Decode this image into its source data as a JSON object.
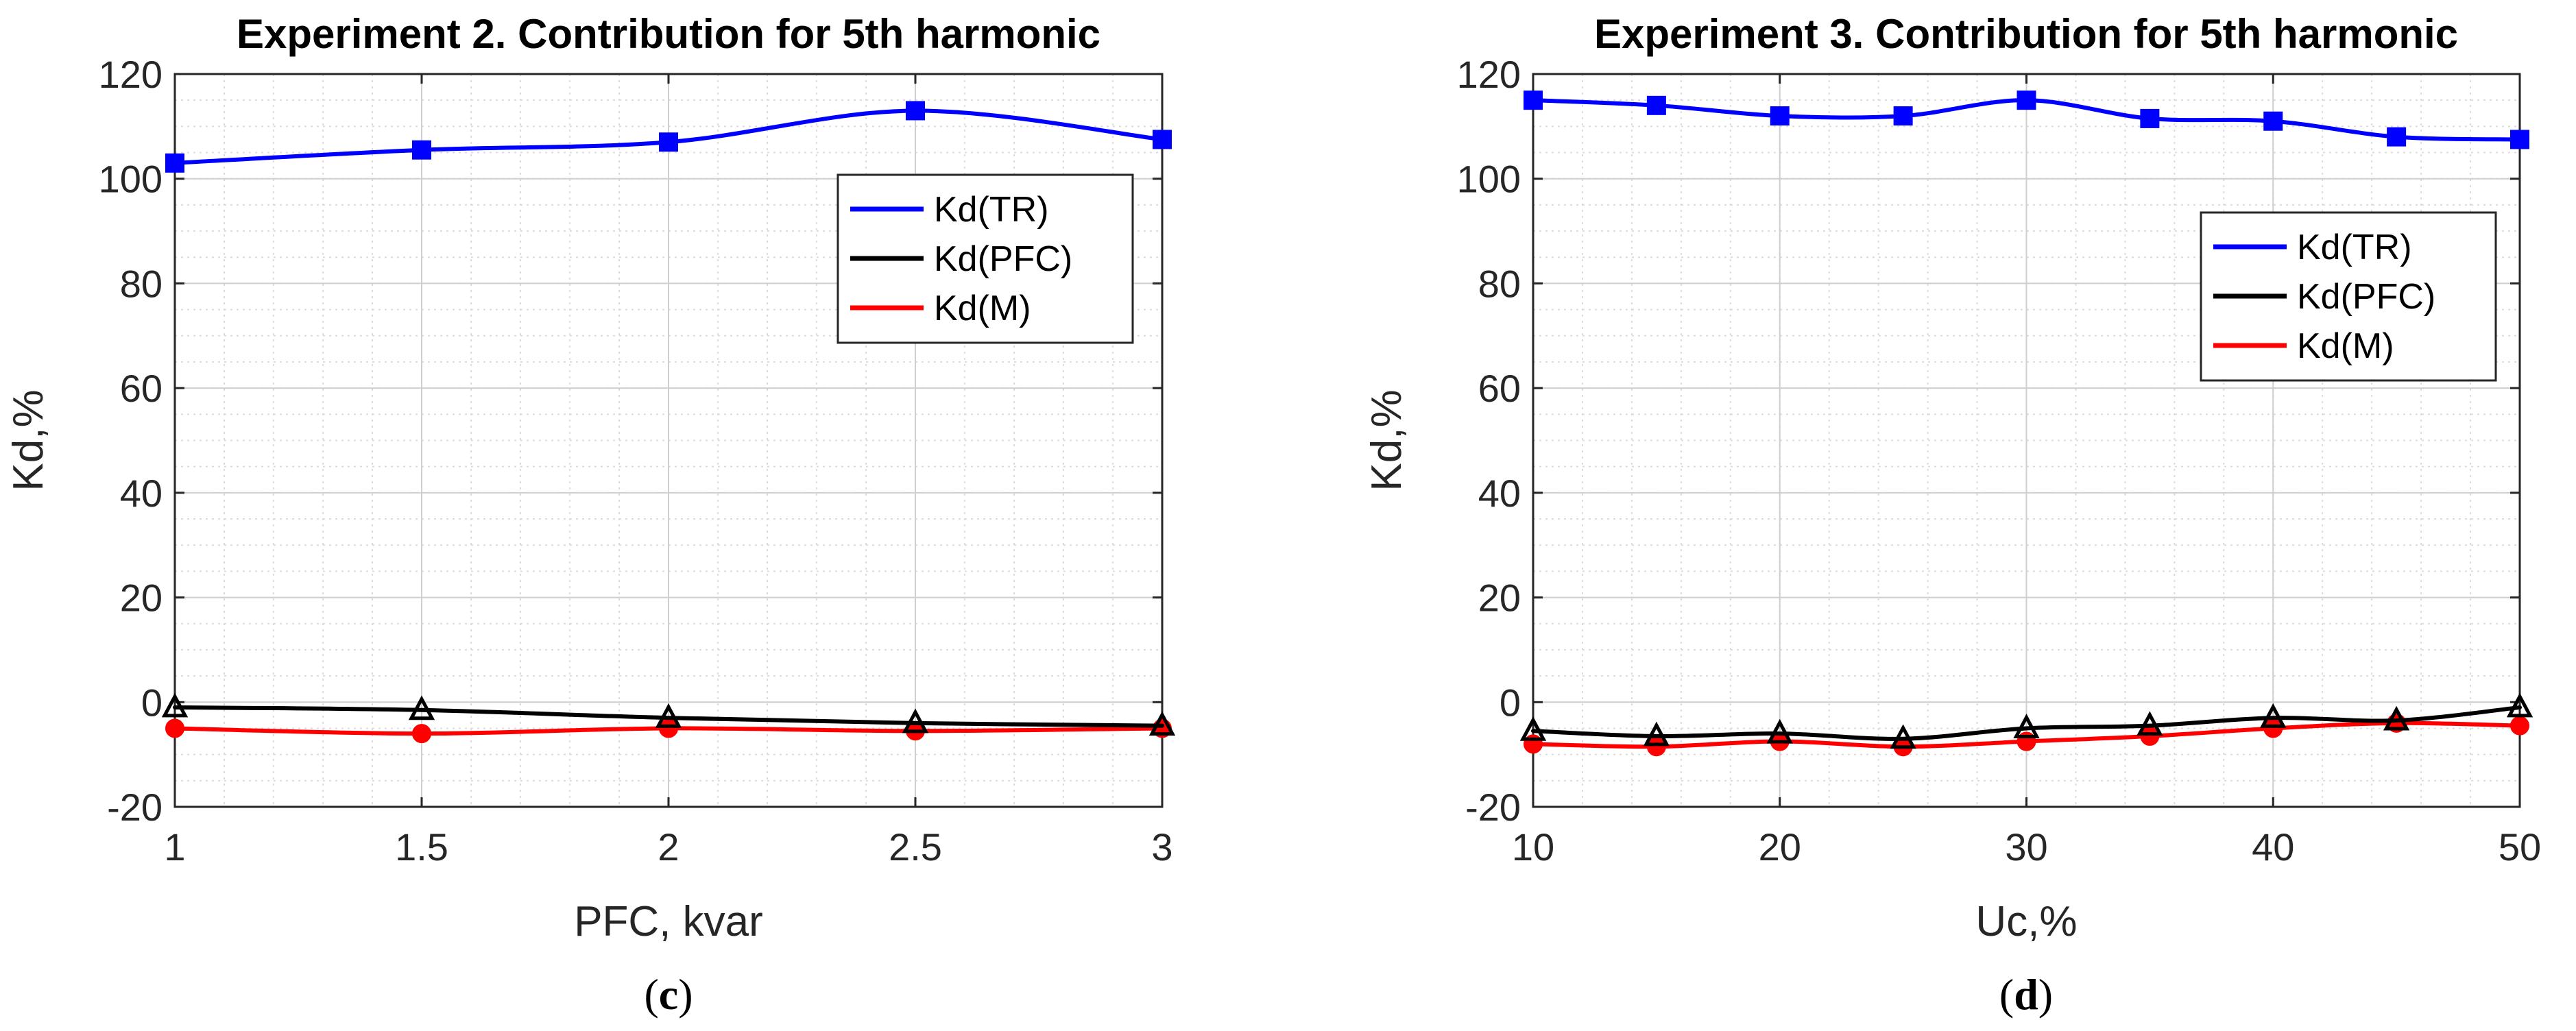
{
  "chart_data": [
    {
      "type": "line",
      "panel_label": "c",
      "title": "Experiment 2. Contribution for 5th harmonic",
      "xlabel": "PFC, kvar",
      "ylabel": "Kd,%",
      "xlim": [
        1,
        3
      ],
      "ylim": [
        -20,
        120
      ],
      "xticks": [
        1,
        1.5,
        2,
        2.5,
        3
      ],
      "xtick_labels": [
        "1",
        "1.5",
        "2",
        "2.5",
        "3"
      ],
      "yticks": [
        -20,
        0,
        20,
        40,
        60,
        80,
        100,
        120
      ],
      "ytick_labels": [
        "-20",
        "0",
        "20",
        "40",
        "60",
        "80",
        "100",
        "120"
      ],
      "grid": true,
      "legend_position": "upper-right",
      "x": [
        1,
        1.5,
        2,
        2.5,
        3
      ],
      "series": [
        {
          "name": "Kd(TR)",
          "color": "#0000ff",
          "marker": "square",
          "values": [
            103,
            105.5,
            107,
            113,
            107.5
          ]
        },
        {
          "name": "Kd(PFC)",
          "color": "#000000",
          "marker": "triangle",
          "values": [
            -1,
            -1.5,
            -3,
            -4,
            -4.5
          ]
        },
        {
          "name": "Kd(M)",
          "color": "#ff0000",
          "marker": "circle",
          "values": [
            -5,
            -6,
            -5,
            -5.5,
            -5
          ]
        }
      ]
    },
    {
      "type": "line",
      "panel_label": "d",
      "title": "Experiment 3. Contribution for 5th harmonic",
      "xlabel": "Uc,%",
      "ylabel": "Kd,%",
      "xlim": [
        10,
        50
      ],
      "ylim": [
        -20,
        120
      ],
      "xticks": [
        10,
        20,
        30,
        40,
        50
      ],
      "xtick_labels": [
        "10",
        "20",
        "30",
        "40",
        "50"
      ],
      "yticks": [
        -20,
        0,
        20,
        40,
        60,
        80,
        100,
        120
      ],
      "ytick_labels": [
        "-20",
        "0",
        "20",
        "40",
        "60",
        "80",
        "100",
        "120"
      ],
      "grid": true,
      "legend_position": "upper-right",
      "x": [
        10,
        15,
        20,
        25,
        30,
        35,
        40,
        45,
        50
      ],
      "series": [
        {
          "name": "Kd(TR)",
          "color": "#0000ff",
          "marker": "square",
          "values": [
            115,
            114,
            112,
            112,
            115,
            111.5,
            111,
            108,
            107.5
          ]
        },
        {
          "name": "Kd(PFC)",
          "color": "#000000",
          "marker": "triangle",
          "values": [
            -5.5,
            -6.5,
            -6,
            -7,
            -5,
            -4.5,
            -3,
            -3.5,
            -1
          ]
        },
        {
          "name": "Kd(M)",
          "color": "#ff0000",
          "marker": "circle",
          "values": [
            -8,
            -8.5,
            -7.5,
            -8.5,
            -7.5,
            -6.5,
            -5,
            -4,
            -4.5
          ]
        }
      ]
    }
  ]
}
